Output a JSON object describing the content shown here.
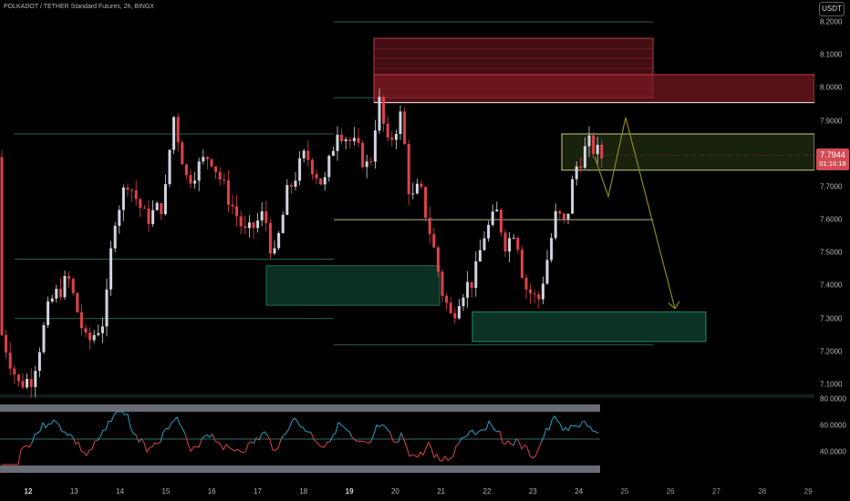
{
  "title": "POLKADOT / TETHER Standard Futures, 2h, BINGX",
  "currency_button": "USDT",
  "price_axis": {
    "labels": [
      "8.2000",
      "8.1000",
      "8.0000",
      "7.9000",
      "7.8000",
      "7.7000",
      "7.6000",
      "7.5000",
      "7.4000",
      "7.3000",
      "7.2000",
      "7.1000"
    ]
  },
  "oscillator_axis": {
    "labels": [
      "80.0000",
      "60.0000",
      "40.0000"
    ]
  },
  "current_price": {
    "value": "7.7944",
    "countdown": "01:16:18",
    "color": "#d24b55"
  },
  "time_axis": {
    "labels": [
      "12",
      "13",
      "14",
      "15",
      "16",
      "17",
      "18",
      "19",
      "20",
      "21",
      "22",
      "23",
      "24",
      "25",
      "26",
      "27",
      "28",
      "29"
    ],
    "bold_labels": [
      "12",
      "19"
    ]
  },
  "colors": {
    "up": "#d1d4dc",
    "down": "#e0424b",
    "supply_zone": "#7a1a22",
    "demand_zone": "#0e3b2c",
    "level_line": "#2c6b62",
    "yellow_line": "#c9c98a",
    "projection": "#8a8a1a",
    "rsi_up": "#2aa3c7",
    "rsi_down": "#e0424b"
  },
  "chart_data": {
    "type": "candlestick",
    "interval": "2h",
    "ylim": [
      7.07,
      8.22
    ],
    "last_close": 7.7944,
    "levels": [
      8.2,
      7.96,
      7.97,
      7.86,
      7.75,
      7.6,
      7.72,
      7.48,
      7.3,
      7.22
    ],
    "zones": [
      {
        "kind": "supply",
        "low": 7.97,
        "high": 8.15
      },
      {
        "kind": "supply",
        "low": 7.96,
        "high": 8.04
      },
      {
        "kind": "resistance",
        "low": 7.75,
        "high": 7.86
      },
      {
        "kind": "demand",
        "low": 7.34,
        "high": 7.46
      },
      {
        "kind": "demand",
        "low": 7.23,
        "high": 7.32
      }
    ],
    "projection_path": [
      7.79,
      7.67,
      7.91,
      7.33
    ],
    "oscillator": {
      "ylim": [
        30,
        80
      ],
      "levels": [
        80,
        60,
        40
      ]
    }
  }
}
